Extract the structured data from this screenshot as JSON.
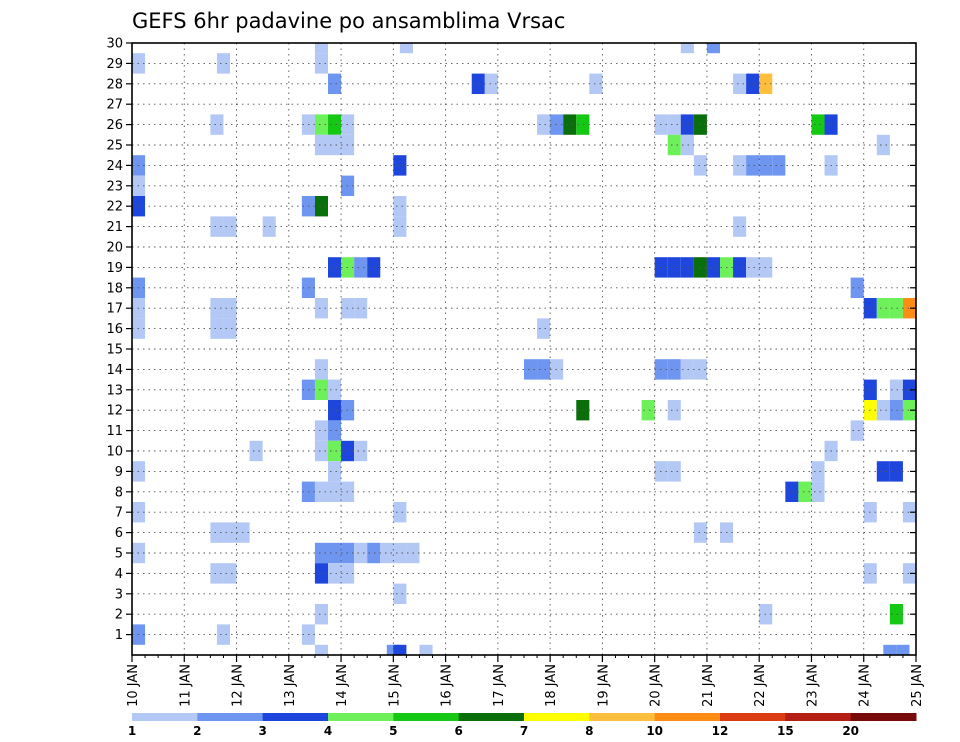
{
  "chart_data": {
    "type": "heatmap",
    "title": "GEFS 6hr padavine po ansamblima Vrsac",
    "xlabel": "",
    "ylabel": "",
    "x_axis": {
      "unit": "6-hour step from 10 JAN 00Z",
      "range": [
        0,
        60
      ],
      "tick_labels": [
        "10 JAN",
        "11 JAN",
        "12 JAN",
        "13 JAN",
        "14 JAN",
        "15 JAN",
        "16 JAN",
        "17 JAN",
        "18 JAN",
        "19 JAN",
        "20 JAN",
        "21 JAN",
        "22 JAN",
        "23 JAN",
        "24 JAN",
        "25 JAN"
      ]
    },
    "y_axis": {
      "unit": "ensemble member",
      "range": [
        0,
        30
      ],
      "tick_labels": [
        "1",
        "2",
        "3",
        "4",
        "5",
        "6",
        "7",
        "8",
        "9",
        "10",
        "11",
        "12",
        "13",
        "14",
        "15",
        "16",
        "17",
        "18",
        "19",
        "20",
        "21",
        "22",
        "23",
        "24",
        "25",
        "26",
        "27",
        "28",
        "29",
        "30"
      ]
    },
    "grid": true,
    "legend": {
      "position": "bottom",
      "thresholds": [
        "1",
        "2",
        "3",
        "4",
        "5",
        "6",
        "7",
        "8",
        "10",
        "12",
        "15",
        "20"
      ],
      "colors": [
        "#b4c8f5",
        "#6e96f0",
        "#1e46dc",
        "#6ef05a",
        "#14c814",
        "#0a6e0a",
        "#ffff00",
        "#ffbe3c",
        "#ff8c14",
        "#dc3c14",
        "#b41e14",
        "#780a0a"
      ]
    },
    "cells": [
      {
        "member": 30,
        "step": 14.5,
        "class": 1
      },
      {
        "member": 30,
        "step": 21,
        "class": 1
      },
      {
        "member": 30,
        "step": 42.5,
        "class": 1
      },
      {
        "member": 30,
        "step": 44.5,
        "class": 2
      },
      {
        "member": 29,
        "step": 0.5,
        "class": 1
      },
      {
        "member": 29,
        "step": 7,
        "class": 1
      },
      {
        "member": 29,
        "step": 14.5,
        "class": 1
      },
      {
        "member": 28,
        "step": 15.5,
        "class": 2
      },
      {
        "member": 28,
        "step": 26.5,
        "class": 3
      },
      {
        "member": 28,
        "step": 27.5,
        "class": 1
      },
      {
        "member": 28,
        "step": 35.5,
        "class": 1
      },
      {
        "member": 28,
        "step": 46.5,
        "class": 1
      },
      {
        "member": 28,
        "step": 47.5,
        "class": 3
      },
      {
        "member": 28,
        "step": 48.5,
        "class": 8
      },
      {
        "member": 26,
        "step": 6.5,
        "class": 1
      },
      {
        "member": 26,
        "step": 13.5,
        "class": 1
      },
      {
        "member": 26,
        "step": 14.5,
        "class": 4
      },
      {
        "member": 26,
        "step": 15.5,
        "class": 5
      },
      {
        "member": 26,
        "step": 16.5,
        "class": 1
      },
      {
        "member": 26,
        "step": 31.5,
        "class": 1
      },
      {
        "member": 26,
        "step": 32.5,
        "class": 2
      },
      {
        "member": 26,
        "step": 33.5,
        "class": 6
      },
      {
        "member": 26,
        "step": 34.5,
        "class": 5
      },
      {
        "member": 26,
        "step": 40.5,
        "class": 1
      },
      {
        "member": 26,
        "step": 41.5,
        "class": 1
      },
      {
        "member": 26,
        "step": 42.5,
        "class": 3
      },
      {
        "member": 26,
        "step": 43.5,
        "class": 6
      },
      {
        "member": 26,
        "step": 52.5,
        "class": 5
      },
      {
        "member": 26,
        "step": 53.5,
        "class": 3
      },
      {
        "member": 25,
        "step": 14.5,
        "class": 1
      },
      {
        "member": 25,
        "step": 15.5,
        "class": 1
      },
      {
        "member": 25,
        "step": 16.5,
        "class": 1
      },
      {
        "member": 25,
        "step": 41.5,
        "class": 4
      },
      {
        "member": 25,
        "step": 42.5,
        "class": 1
      },
      {
        "member": 25,
        "step": 57.5,
        "class": 1
      },
      {
        "member": 24,
        "step": 0.5,
        "class": 2
      },
      {
        "member": 24,
        "step": 20.5,
        "class": 3
      },
      {
        "member": 24,
        "step": 43.5,
        "class": 1
      },
      {
        "member": 24,
        "step": 46.5,
        "class": 1
      },
      {
        "member": 24,
        "step": 47.5,
        "class": 2
      },
      {
        "member": 24,
        "step": 48.5,
        "class": 2
      },
      {
        "member": 24,
        "step": 49.5,
        "class": 2
      },
      {
        "member": 24,
        "step": 53.5,
        "class": 1
      },
      {
        "member": 23,
        "step": 0.5,
        "class": 1
      },
      {
        "member": 23,
        "step": 16.5,
        "class": 2
      },
      {
        "member": 22,
        "step": 0.5,
        "class": 3
      },
      {
        "member": 22,
        "step": 13.5,
        "class": 2
      },
      {
        "member": 22,
        "step": 14.5,
        "class": 6
      },
      {
        "member": 22,
        "step": 20.5,
        "class": 1
      },
      {
        "member": 21,
        "step": 6.5,
        "class": 1
      },
      {
        "member": 21,
        "step": 7.5,
        "class": 1
      },
      {
        "member": 21,
        "step": 10.5,
        "class": 1
      },
      {
        "member": 21,
        "step": 20.5,
        "class": 1
      },
      {
        "member": 21,
        "step": 46.5,
        "class": 1
      },
      {
        "member": 19,
        "step": 15.5,
        "class": 3
      },
      {
        "member": 19,
        "step": 16.5,
        "class": 4
      },
      {
        "member": 19,
        "step": 17.5,
        "class": 2
      },
      {
        "member": 19,
        "step": 18.5,
        "class": 3
      },
      {
        "member": 19,
        "step": 40.5,
        "class": 3
      },
      {
        "member": 19,
        "step": 41.5,
        "class": 3
      },
      {
        "member": 19,
        "step": 42.5,
        "class": 3
      },
      {
        "member": 19,
        "step": 43.5,
        "class": 6
      },
      {
        "member": 19,
        "step": 44.5,
        "class": 3
      },
      {
        "member": 19,
        "step": 45.5,
        "class": 4
      },
      {
        "member": 19,
        "step": 46.5,
        "class": 3
      },
      {
        "member": 19,
        "step": 47.5,
        "class": 1
      },
      {
        "member": 19,
        "step": 48.5,
        "class": 1
      },
      {
        "member": 18,
        "step": 0.5,
        "class": 2
      },
      {
        "member": 18,
        "step": 13.5,
        "class": 2
      },
      {
        "member": 18,
        "step": 55.5,
        "class": 2
      },
      {
        "member": 17,
        "step": 0.5,
        "class": 1
      },
      {
        "member": 17,
        "step": 6.5,
        "class": 1
      },
      {
        "member": 17,
        "step": 7.5,
        "class": 1
      },
      {
        "member": 17,
        "step": 14.5,
        "class": 1
      },
      {
        "member": 17,
        "step": 16.5,
        "class": 1
      },
      {
        "member": 17,
        "step": 17.5,
        "class": 1
      },
      {
        "member": 17,
        "step": 56.5,
        "class": 3
      },
      {
        "member": 17,
        "step": 57.5,
        "class": 4
      },
      {
        "member": 17,
        "step": 58.5,
        "class": 4
      },
      {
        "member": 17,
        "step": 59.5,
        "class": 9
      },
      {
        "member": 16,
        "step": 0.5,
        "class": 1
      },
      {
        "member": 16,
        "step": 6.5,
        "class": 1
      },
      {
        "member": 16,
        "step": 7.5,
        "class": 1
      },
      {
        "member": 16,
        "step": 31.5,
        "class": 1
      },
      {
        "member": 14,
        "step": 14.5,
        "class": 1
      },
      {
        "member": 14,
        "step": 30.5,
        "class": 2
      },
      {
        "member": 14,
        "step": 31.5,
        "class": 2
      },
      {
        "member": 14,
        "step": 32.5,
        "class": 1
      },
      {
        "member": 14,
        "step": 40.5,
        "class": 2
      },
      {
        "member": 14,
        "step": 41.5,
        "class": 2
      },
      {
        "member": 14,
        "step": 42.5,
        "class": 1
      },
      {
        "member": 14,
        "step": 43.5,
        "class": 1
      },
      {
        "member": 13,
        "step": 13.5,
        "class": 2
      },
      {
        "member": 13,
        "step": 14.5,
        "class": 4
      },
      {
        "member": 13,
        "step": 15.5,
        "class": 1
      },
      {
        "member": 13,
        "step": 56.5,
        "class": 3
      },
      {
        "member": 13,
        "step": 58.5,
        "class": 1
      },
      {
        "member": 13,
        "step": 59.5,
        "class": 3
      },
      {
        "member": 12,
        "step": 15.5,
        "class": 3
      },
      {
        "member": 12,
        "step": 16.5,
        "class": 2
      },
      {
        "member": 12,
        "step": 34.5,
        "class": 6
      },
      {
        "member": 12,
        "step": 39.5,
        "class": 4
      },
      {
        "member": 12,
        "step": 41.5,
        "class": 1
      },
      {
        "member": 12,
        "step": 56.5,
        "class": 7
      },
      {
        "member": 12,
        "step": 57.5,
        "class": 1
      },
      {
        "member": 12,
        "step": 58.5,
        "class": 2
      },
      {
        "member": 12,
        "step": 59.5,
        "class": 4
      },
      {
        "member": 11,
        "step": 14.5,
        "class": 1
      },
      {
        "member": 11,
        "step": 15.5,
        "class": 2
      },
      {
        "member": 11,
        "step": 55.5,
        "class": 1
      },
      {
        "member": 10,
        "step": 9.5,
        "class": 1
      },
      {
        "member": 10,
        "step": 14.5,
        "class": 1
      },
      {
        "member": 10,
        "step": 15.5,
        "class": 4
      },
      {
        "member": 10,
        "step": 16.5,
        "class": 3
      },
      {
        "member": 10,
        "step": 17.5,
        "class": 1
      },
      {
        "member": 10,
        "step": 53.5,
        "class": 1
      },
      {
        "member": 9,
        "step": 0.5,
        "class": 1
      },
      {
        "member": 9,
        "step": 15.5,
        "class": 1
      },
      {
        "member": 9,
        "step": 40.5,
        "class": 1
      },
      {
        "member": 9,
        "step": 41.5,
        "class": 1
      },
      {
        "member": 9,
        "step": 52.5,
        "class": 1
      },
      {
        "member": 9,
        "step": 57.5,
        "class": 3
      },
      {
        "member": 9,
        "step": 58.5,
        "class": 3
      },
      {
        "member": 8,
        "step": 13.5,
        "class": 2
      },
      {
        "member": 8,
        "step": 14.5,
        "class": 1
      },
      {
        "member": 8,
        "step": 15.5,
        "class": 1
      },
      {
        "member": 8,
        "step": 16.5,
        "class": 1
      },
      {
        "member": 8,
        "step": 50.5,
        "class": 3
      },
      {
        "member": 8,
        "step": 51.5,
        "class": 4
      },
      {
        "member": 8,
        "step": 52.5,
        "class": 1
      },
      {
        "member": 7,
        "step": 0.5,
        "class": 1
      },
      {
        "member": 7,
        "step": 20.5,
        "class": 1
      },
      {
        "member": 7,
        "step": 56.5,
        "class": 1
      },
      {
        "member": 7,
        "step": 59.5,
        "class": 1
      },
      {
        "member": 6,
        "step": 6.5,
        "class": 1
      },
      {
        "member": 6,
        "step": 7.5,
        "class": 1
      },
      {
        "member": 6,
        "step": 8.5,
        "class": 1
      },
      {
        "member": 6,
        "step": 43.5,
        "class": 1
      },
      {
        "member": 6,
        "step": 45.5,
        "class": 1
      },
      {
        "member": 5,
        "step": 0.5,
        "class": 1
      },
      {
        "member": 5,
        "step": 14.5,
        "class": 2
      },
      {
        "member": 5,
        "step": 15.5,
        "class": 2
      },
      {
        "member": 5,
        "step": 16.5,
        "class": 2
      },
      {
        "member": 5,
        "step": 17.5,
        "class": 1
      },
      {
        "member": 5,
        "step": 18.5,
        "class": 2
      },
      {
        "member": 5,
        "step": 19.5,
        "class": 1
      },
      {
        "member": 5,
        "step": 20.5,
        "class": 1
      },
      {
        "member": 5,
        "step": 21.5,
        "class": 1
      },
      {
        "member": 4,
        "step": 6.5,
        "class": 1
      },
      {
        "member": 4,
        "step": 7.5,
        "class": 1
      },
      {
        "member": 4,
        "step": 14.5,
        "class": 3
      },
      {
        "member": 4,
        "step": 15.5,
        "class": 1
      },
      {
        "member": 4,
        "step": 16.5,
        "class": 1
      },
      {
        "member": 4,
        "step": 56.5,
        "class": 1
      },
      {
        "member": 4,
        "step": 59.5,
        "class": 1
      },
      {
        "member": 3,
        "step": 20.5,
        "class": 1
      },
      {
        "member": 2,
        "step": 14.5,
        "class": 1
      },
      {
        "member": 2,
        "step": 48.5,
        "class": 1
      },
      {
        "member": 2,
        "step": 58.5,
        "class": 5
      },
      {
        "member": 1,
        "step": 0.5,
        "class": 2
      },
      {
        "member": 1,
        "step": 7,
        "class": 1
      },
      {
        "member": 1,
        "step": 13.5,
        "class": 1
      },
      {
        "member": 0,
        "step": 14.5,
        "class": 1
      },
      {
        "member": 0,
        "step": 20,
        "class": 2
      },
      {
        "member": 0,
        "step": 20.5,
        "class": 3
      },
      {
        "member": 0,
        "step": 22.5,
        "class": 1
      },
      {
        "member": 0,
        "step": 58,
        "class": 2
      },
      {
        "member": 0,
        "step": 59,
        "class": 2
      }
    ]
  }
}
